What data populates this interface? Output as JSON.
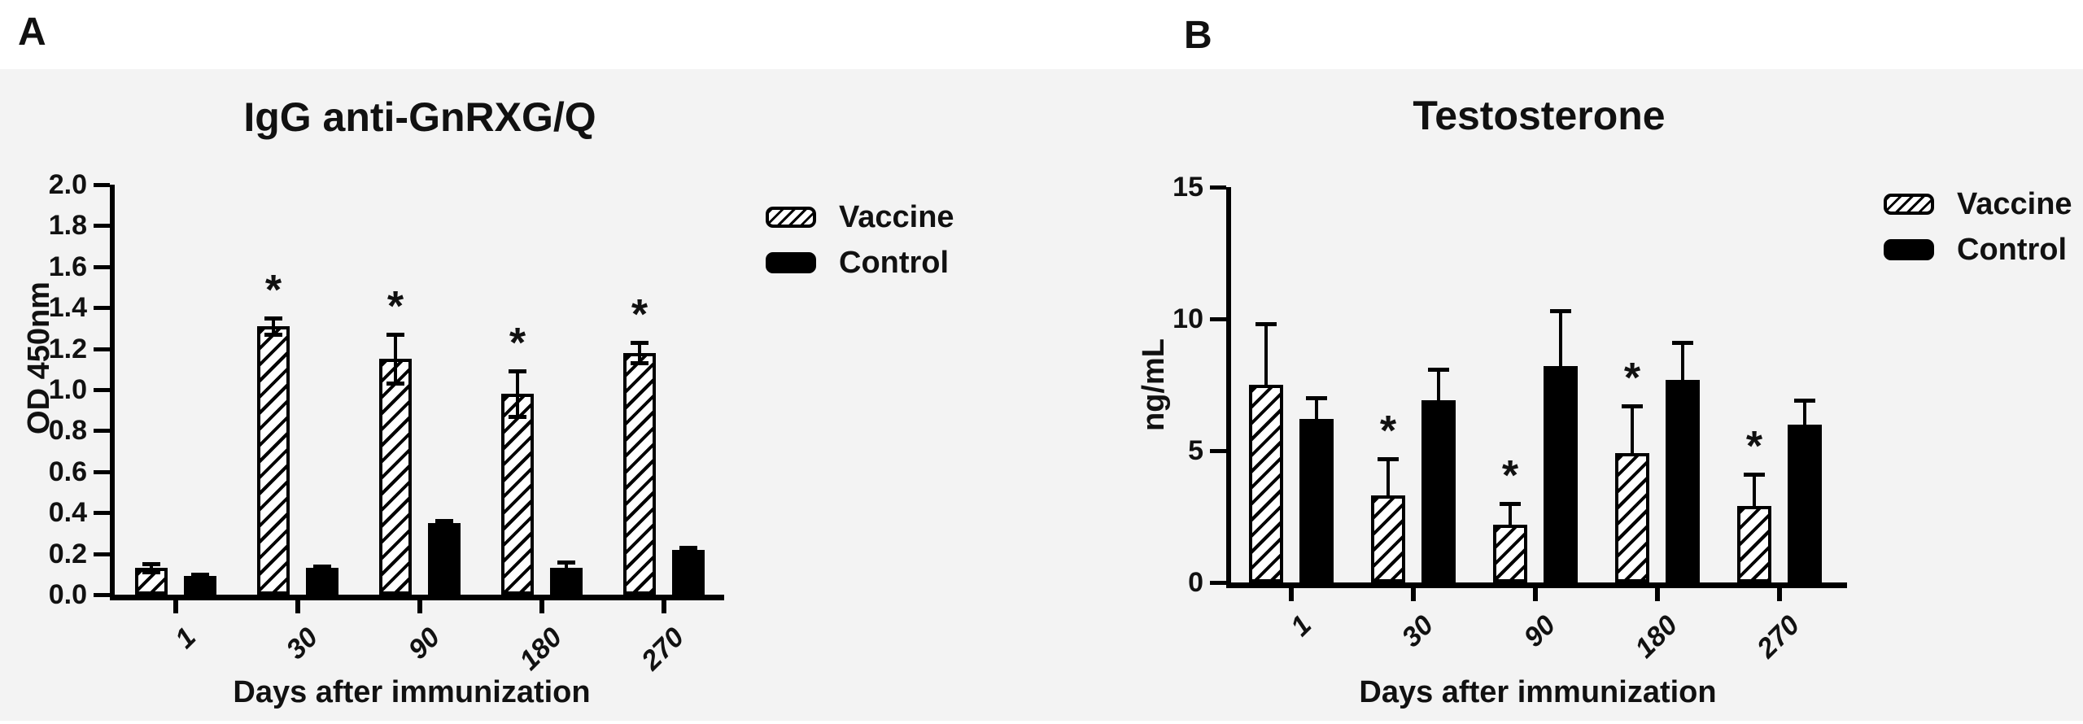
{
  "figure": {
    "background_color": "#f3f3f3",
    "ink_color": "#000000"
  },
  "chart_data": [
    {
      "type": "bar",
      "panel_label": "A",
      "title": "IgG anti-GnRXG/Q",
      "xlabel": "Days after immunization",
      "ylabel": "OD 450nm",
      "categories": [
        "1",
        "30",
        "90",
        "180",
        "270"
      ],
      "ylim": [
        0,
        2.0
      ],
      "yticks": [
        "0.0",
        "0.2",
        "0.4",
        "0.6",
        "0.8",
        "1.0",
        "1.2",
        "1.4",
        "1.6",
        "1.8",
        "2.0"
      ],
      "grid": false,
      "legend_position": "right",
      "error_bars": "both",
      "sig_marker": "*",
      "series": [
        {
          "name": "Vaccine",
          "pattern": "hatched",
          "values": [
            0.13,
            1.31,
            1.15,
            0.98,
            1.18
          ],
          "errors": [
            0.02,
            0.04,
            0.12,
            0.11,
            0.05
          ],
          "significant": [
            false,
            true,
            true,
            true,
            true
          ]
        },
        {
          "name": "Control",
          "pattern": "solid",
          "values": [
            0.09,
            0.13,
            0.35,
            0.13,
            0.22
          ],
          "errors": [
            0.01,
            0.01,
            0.01,
            0.03,
            0.01
          ],
          "significant": [
            false,
            false,
            false,
            false,
            false
          ]
        }
      ]
    },
    {
      "type": "bar",
      "panel_label": "B",
      "title": "Testosterone",
      "xlabel": "Days after immunization",
      "ylabel": "ng/mL",
      "categories": [
        "1",
        "30",
        "90",
        "180",
        "270"
      ],
      "ylim": [
        0,
        15
      ],
      "yticks": [
        "0",
        "5",
        "10",
        "15"
      ],
      "grid": false,
      "legend_position": "right",
      "error_bars": "upper",
      "sig_marker": "*",
      "series": [
        {
          "name": "Vaccine",
          "pattern": "hatched",
          "values": [
            7.5,
            3.3,
            2.2,
            4.9,
            2.9
          ],
          "errors": [
            2.3,
            1.4,
            0.8,
            1.8,
            1.2
          ],
          "significant": [
            false,
            true,
            true,
            true,
            true
          ]
        },
        {
          "name": "Control",
          "pattern": "solid",
          "values": [
            6.2,
            6.9,
            8.2,
            7.7,
            6.0
          ],
          "errors": [
            0.8,
            1.2,
            2.1,
            1.4,
            0.9
          ],
          "significant": [
            false,
            false,
            false,
            false,
            false
          ]
        }
      ]
    }
  ]
}
